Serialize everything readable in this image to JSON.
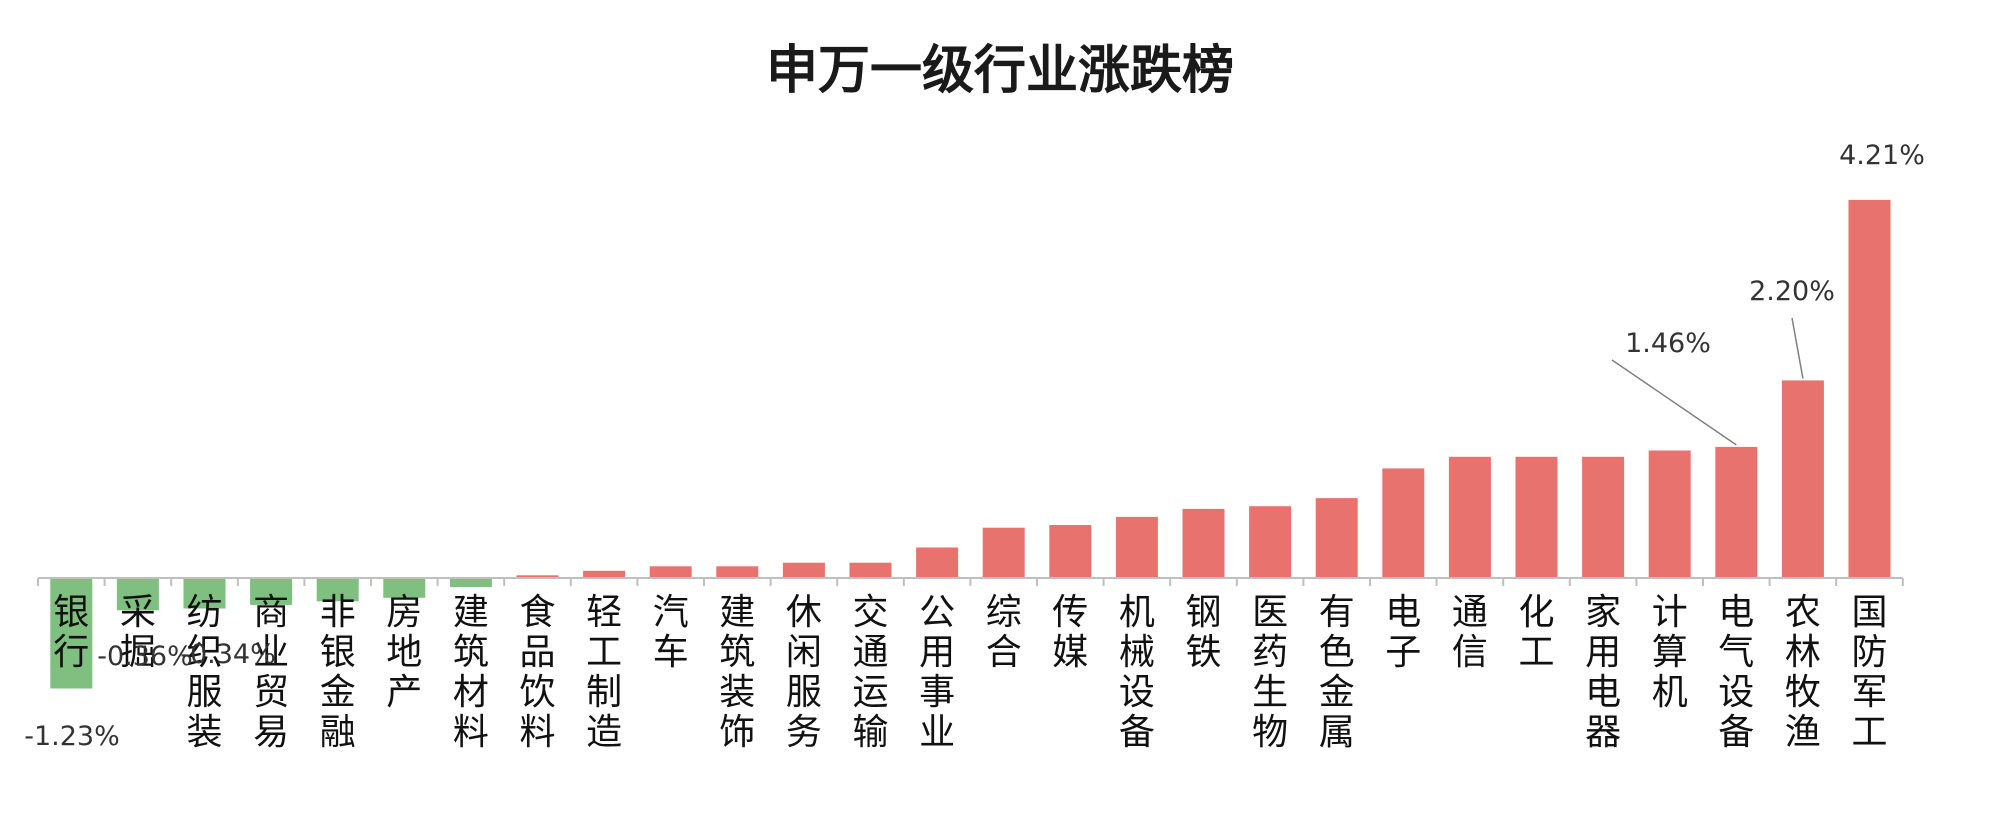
{
  "chart_data": {
    "type": "bar",
    "title": "申万一级行业涨跌榜",
    "categories": [
      "银行",
      "采掘",
      "纺织服装",
      "商业贸易",
      "非银金融",
      "房地产",
      "建筑材料",
      "食品饮料",
      "轻工制造",
      "汽车",
      "建筑装饰",
      "休闲服务",
      "交通运输",
      "公用事业",
      "综合",
      "传媒",
      "机械设备",
      "钢铁",
      "医药生物",
      "有色金属",
      "电子",
      "通信",
      "化工",
      "家用电器",
      "计算机",
      "电气设备",
      "农林牧渔",
      "国防军工"
    ],
    "values": [
      -1.23,
      -0.36,
      -0.34,
      -0.3,
      -0.26,
      -0.22,
      -0.1,
      0.03,
      0.08,
      0.13,
      0.13,
      0.17,
      0.17,
      0.34,
      0.56,
      0.59,
      0.68,
      0.77,
      0.8,
      0.89,
      1.22,
      1.35,
      1.35,
      1.35,
      1.42,
      1.46,
      2.2,
      4.21
    ],
    "labels": [
      {
        "category": "银行",
        "text": "-1.23%"
      },
      {
        "category": "采掘",
        "text": "-0.36%"
      },
      {
        "category": "纺织服装",
        "text": "-0.34%"
      },
      {
        "category": "电气设备",
        "text": "1.46%"
      },
      {
        "category": "农林牧渔",
        "text": "2.20%"
      },
      {
        "category": "国防军工",
        "text": "4.21%"
      }
    ],
    "ylim": [
      -1.4,
      4.6
    ],
    "grid": false,
    "legend": "none",
    "colors": {
      "positive": "#e8726e",
      "negative": "#7fbf7f",
      "axis": "#bfbfbf",
      "leader": "#808080"
    }
  }
}
